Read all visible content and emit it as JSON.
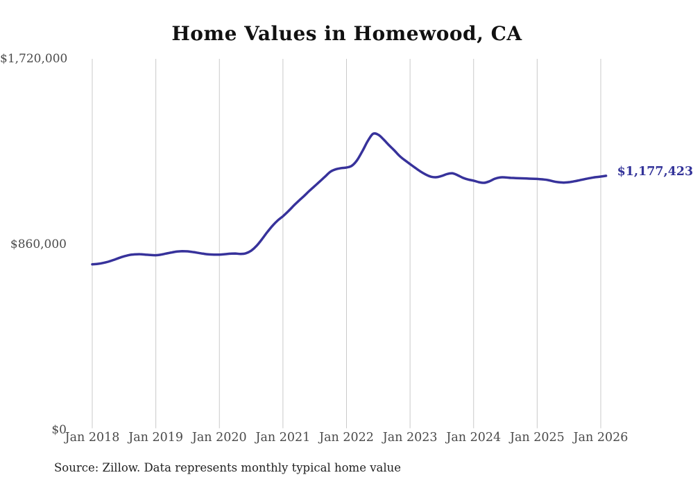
{
  "title": "Home Values in Homewood, CA",
  "source_note": "Source: Zillow. Data represents monthly typical home value",
  "end_label": "$1,177,423",
  "colors": {
    "line": "#37329b",
    "grid": "#c9c9c9",
    "tick_text": "#4a4a4a",
    "title_text": "#111111",
    "end_label_text": "#333399",
    "background": "#ffffff"
  },
  "chart_data": {
    "type": "line",
    "title": "Home Values in Homewood, CA",
    "xlabel": "",
    "ylabel": "",
    "grid": "vertical-only",
    "legend": "none",
    "x_tick_labels": [
      "Jan 2018",
      "Jan 2019",
      "Jan 2020",
      "Jan 2021",
      "Jan 2022",
      "Jan 2023",
      "Jan 2024",
      "Jan 2025",
      "Jan 2026"
    ],
    "months_per_x_tick": 12,
    "y_ticks": [
      {
        "label": "$1,720,000",
        "value": 1720000
      },
      {
        "label": "$860,000",
        "value": 860000
      },
      {
        "label": "$0",
        "value": 0
      }
    ],
    "ylim": [
      0,
      1720000
    ],
    "series": [
      {
        "name": "Monthly typical home value",
        "start": "Jan 2018",
        "interval": "monthly",
        "values": [
          767000,
          769000,
          773000,
          779000,
          787000,
          796000,
          804000,
          810000,
          813000,
          814000,
          812000,
          810000,
          809000,
          812000,
          817000,
          822000,
          826000,
          828000,
          827000,
          824000,
          820000,
          816000,
          813000,
          812000,
          812000,
          814000,
          816000,
          817000,
          815000,
          818000,
          830000,
          852000,
          882000,
          915000,
          945000,
          970000,
          990000,
          1013000,
          1038000,
          1062000,
          1084000,
          1108000,
          1130000,
          1152000,
          1175000,
          1197000,
          1208000,
          1213000,
          1216000,
          1224000,
          1250000,
          1292000,
          1338000,
          1372000,
          1368000,
          1346000,
          1320000,
          1296000,
          1270000,
          1250000,
          1232000,
          1214000,
          1197000,
          1183000,
          1173000,
          1171000,
          1177000,
          1186000,
          1189000,
          1180000,
          1168000,
          1160000,
          1155000,
          1148000,
          1145000,
          1152000,
          1164000,
          1170000,
          1170000,
          1168000,
          1167000,
          1166000,
          1165000,
          1164000,
          1163000,
          1161000,
          1158000,
          1152000,
          1148000,
          1146000,
          1148000,
          1152000,
          1157000,
          1162000,
          1167000,
          1171000,
          1174000,
          1177423
        ]
      }
    ],
    "end_value": 1177423
  }
}
